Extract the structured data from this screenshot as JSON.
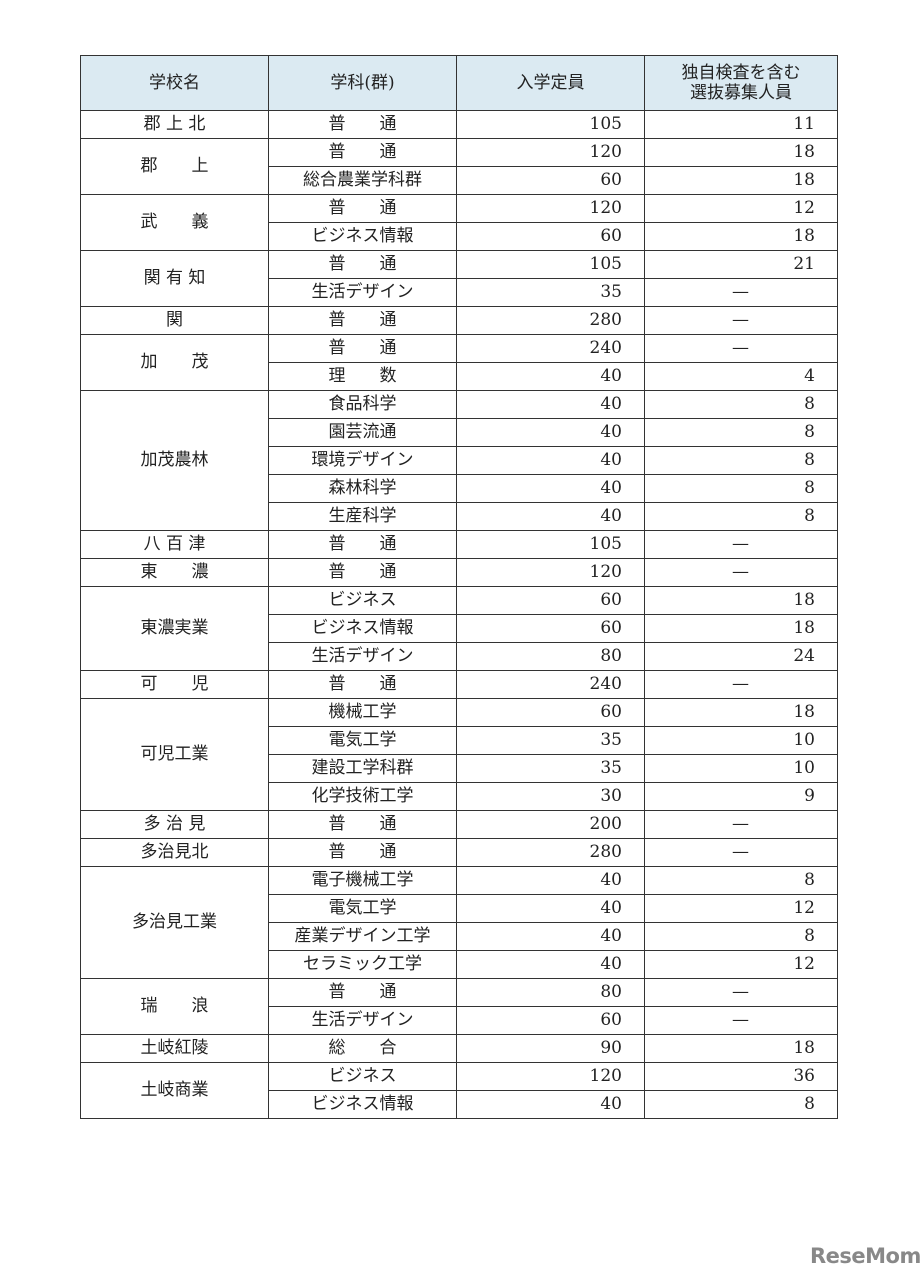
{
  "headers": [
    "学校名",
    "学科(群)",
    "入学定員",
    "独自検査を含む\n選抜募集人員"
  ],
  "groups": [
    {
      "school": "郡 上 北",
      "rows": [
        [
          "普　　通",
          "105",
          "11"
        ]
      ]
    },
    {
      "school": "郡　　上",
      "rows": [
        [
          "普　　通",
          "120",
          "18"
        ],
        [
          "総合農業学科群",
          "60",
          "18"
        ]
      ]
    },
    {
      "school": "武　　義",
      "rows": [
        [
          "普　　通",
          "120",
          "12"
        ],
        [
          "ビジネス情報",
          "60",
          "18"
        ]
      ]
    },
    {
      "school": "関 有 知",
      "rows": [
        [
          "普　　通",
          "105",
          "21"
        ],
        [
          "生活デザイン",
          "35",
          "—"
        ]
      ]
    },
    {
      "school": "関",
      "rows": [
        [
          "普　　通",
          "280",
          "—"
        ]
      ]
    },
    {
      "school": "加　　茂",
      "rows": [
        [
          "普　　通",
          "240",
          "—"
        ],
        [
          "理　　数",
          "40",
          "4"
        ]
      ]
    },
    {
      "school": "加茂農林",
      "rows": [
        [
          "食品科学",
          "40",
          "8"
        ],
        [
          "園芸流通",
          "40",
          "8"
        ],
        [
          "環境デザイン",
          "40",
          "8"
        ],
        [
          "森林科学",
          "40",
          "8"
        ],
        [
          "生産科学",
          "40",
          "8"
        ]
      ]
    },
    {
      "school": "八 百 津",
      "rows": [
        [
          "普　　通",
          "105",
          "—"
        ]
      ]
    },
    {
      "school": "東　　濃",
      "rows": [
        [
          "普　　通",
          "120",
          "—"
        ]
      ]
    },
    {
      "school": "東濃実業",
      "rows": [
        [
          "ビジネス",
          "60",
          "18"
        ],
        [
          "ビジネス情報",
          "60",
          "18"
        ],
        [
          "生活デザイン",
          "80",
          "24"
        ]
      ]
    },
    {
      "school": "可　　児",
      "rows": [
        [
          "普　　通",
          "240",
          "—"
        ]
      ]
    },
    {
      "school": "可児工業",
      "rows": [
        [
          "機械工学",
          "60",
          "18"
        ],
        [
          "電気工学",
          "35",
          "10"
        ],
        [
          "建設工学科群",
          "35",
          "10"
        ],
        [
          "化学技術工学",
          "30",
          "9"
        ]
      ]
    },
    {
      "school": "多 治 見",
      "rows": [
        [
          "普　　通",
          "200",
          "—"
        ]
      ]
    },
    {
      "school": "多治見北",
      "rows": [
        [
          "普　　通",
          "280",
          "—"
        ]
      ]
    },
    {
      "school": "多治見工業",
      "rows": [
        [
          "電子機械工学",
          "40",
          "8"
        ],
        [
          "電気工学",
          "40",
          "12"
        ],
        [
          "産業デザイン工学",
          "40",
          "8"
        ],
        [
          "セラミック工学",
          "40",
          "12"
        ]
      ]
    },
    {
      "school": "瑞　　浪",
      "rows": [
        [
          "普　　通",
          "80",
          "—"
        ],
        [
          "生活デザイン",
          "60",
          "—"
        ]
      ]
    },
    {
      "school": "土岐紅陵",
      "rows": [
        [
          "総　　合",
          "90",
          "18"
        ]
      ]
    },
    {
      "school": "土岐商業",
      "rows": [
        [
          "ビジネス",
          "120",
          "36"
        ],
        [
          "ビジネス情報",
          "40",
          "8"
        ]
      ]
    }
  ],
  "watermark": "ReseMom"
}
